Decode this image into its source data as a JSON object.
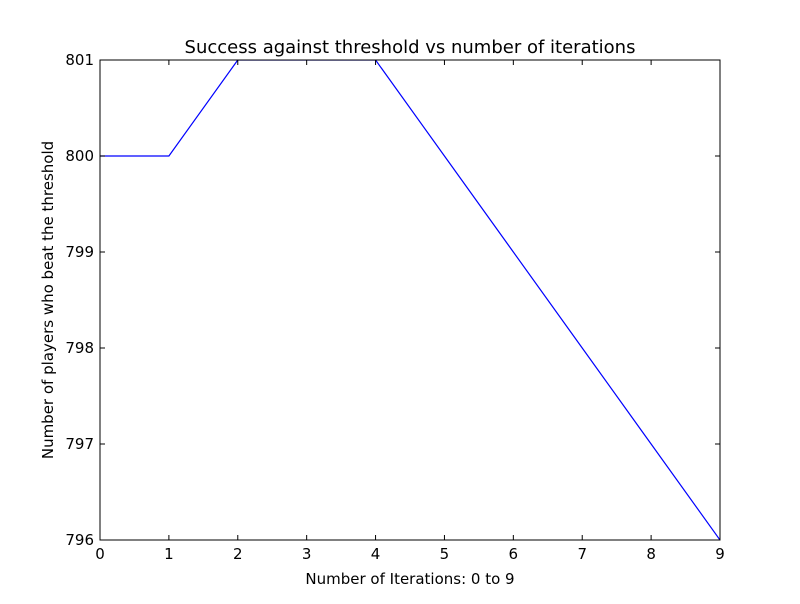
{
  "chart_data": {
    "type": "line",
    "title": "Success against threshold vs number of iterations",
    "xlabel": "Number of Iterations: 0 to 9",
    "ylabel": "Number of players who beat the threshold",
    "xlim": [
      0,
      9
    ],
    "ylim": [
      796,
      801
    ],
    "xticks": [
      0,
      1,
      2,
      3,
      4,
      5,
      6,
      7,
      8,
      9
    ],
    "yticks": [
      796,
      797,
      798,
      799,
      800,
      801
    ],
    "grid": false,
    "series": [
      {
        "x": [
          0,
          1,
          2,
          3,
          4,
          5,
          6,
          7,
          8,
          9
        ],
        "y": [
          800,
          800,
          801,
          801,
          801,
          800,
          799,
          798,
          797,
          796
        ]
      }
    ],
    "colors": {
      "line": "#0000ff",
      "axes": "#000000",
      "background": "#ffffff"
    }
  }
}
